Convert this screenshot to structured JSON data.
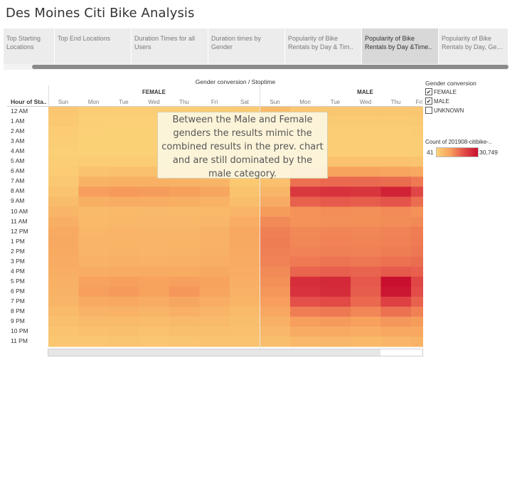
{
  "title": "Des Moines Citi Bike Analysis",
  "tabs": [
    {
      "line1": "Top Starting",
      "line2": "Locations",
      "active": false,
      "width": 72
    },
    {
      "line1": "Top End Locations",
      "line2": "",
      "active": false,
      "width": 108
    },
    {
      "line1": "Duration Times for all",
      "line2": "Users",
      "active": false,
      "width": 108
    },
    {
      "line1": "Duration times by",
      "line2": "Gender",
      "active": false,
      "width": 108
    },
    {
      "line1": "Popularity of Bike",
      "line2": "Rentals by Day & Tim..",
      "active": false,
      "width": 108
    },
    {
      "line1": "Popularity of Bike",
      "line2": "Rentals by Day &Time..",
      "active": true,
      "width": 108
    },
    {
      "line1": "Popularity of Bike",
      "line2": "Rentals by Day, Gend..",
      "active": false,
      "width": 98
    }
  ],
  "chart": {
    "column_title": "Gender conversion / Stoptime",
    "groups": [
      "FEMALE",
      "MALE"
    ],
    "days": [
      "Sun",
      "Mon",
      "Tue",
      "Wed",
      "Thu",
      "Fri",
      "Sat",
      "Sun",
      "Mon",
      "Tue",
      "Wed",
      "Thu",
      "Fri"
    ],
    "row_header": "Hour of Sta..",
    "hours": [
      "12 AM",
      "1 AM",
      "2 AM",
      "3 AM",
      "4 AM",
      "5 AM",
      "6 AM",
      "7 AM",
      "8 AM",
      "9 AM",
      "10 AM",
      "11 AM",
      "12 PM",
      "1 PM",
      "2 PM",
      "3 PM",
      "4 PM",
      "5 PM",
      "6 PM",
      "7 PM",
      "8 PM",
      "9 PM",
      "10 PM",
      "11 PM"
    ]
  },
  "annotation": "Between the Male and Female genders the results mimic the combined results in the prev. chart and are still dominated by the male category.",
  "legend": {
    "title": "Gender conversion",
    "items": [
      {
        "label": "FEMALE",
        "checked": true
      },
      {
        "label": "MALE",
        "checked": true
      },
      {
        "label": "UNKNOWN",
        "checked": false
      }
    ],
    "count_title": "Count of 201908-citibike-..",
    "min_label": "41",
    "max_label": "30,749",
    "min_value": 41,
    "max_value": 30749
  },
  "chart_data": {
    "type": "heatmap",
    "title": "Gender conversion / Stoptime",
    "x_groups": [
      "FEMALE",
      "MALE"
    ],
    "x": [
      "Sun",
      "Mon",
      "Tue",
      "Wed",
      "Thu",
      "Fri",
      "Sat"
    ],
    "y": [
      "12 AM",
      "1 AM",
      "2 AM",
      "3 AM",
      "4 AM",
      "5 AM",
      "6 AM",
      "7 AM",
      "8 AM",
      "9 AM",
      "10 AM",
      "11 AM",
      "12 PM",
      "1 PM",
      "2 PM",
      "3 PM",
      "4 PM",
      "5 PM",
      "6 PM",
      "7 PM",
      "8 PM",
      "9 PM",
      "10 PM",
      "11 PM"
    ],
    "value_range": [
      41,
      30749
    ],
    "colors": [
      "#fbd277",
      "#f7a05c",
      "#e34c48",
      "#c8102e"
    ],
    "female": [
      [
        2500,
        1000,
        800,
        900,
        900,
        1200,
        1700
      ],
      [
        1800,
        600,
        500,
        500,
        500,
        700,
        1300
      ],
      [
        1300,
        400,
        300,
        300,
        300,
        500,
        1000
      ],
      [
        900,
        300,
        250,
        250,
        250,
        300,
        700
      ],
      [
        700,
        400,
        350,
        350,
        350,
        400,
        600
      ],
      [
        800,
        1200,
        1300,
        1300,
        1200,
        1100,
        700
      ],
      [
        1200,
        3500,
        3700,
        3700,
        3600,
        3300,
        1100
      ],
      [
        2000,
        6500,
        7000,
        7000,
        6800,
        6000,
        1900
      ],
      [
        3200,
        10500,
        11000,
        10800,
        10200,
        9000,
        3000
      ],
      [
        4500,
        7500,
        7800,
        7600,
        7300,
        6700,
        4300
      ],
      [
        6000,
        5000,
        5200,
        5100,
        5000,
        5200,
        6000
      ],
      [
        7500,
        5200,
        5400,
        5300,
        5300,
        5800,
        7700
      ],
      [
        8300,
        5900,
        6100,
        6000,
        6000,
        6600,
        8600
      ],
      [
        8400,
        6000,
        6200,
        6100,
        6100,
        6700,
        8500
      ],
      [
        8300,
        6100,
        6300,
        6200,
        6300,
        6900,
        8300
      ],
      [
        8000,
        6700,
        7000,
        6800,
        6900,
        7500,
        8000
      ],
      [
        7500,
        7600,
        8000,
        7800,
        7900,
        8400,
        7600
      ],
      [
        7000,
        9600,
        10200,
        9900,
        10400,
        9700,
        7200
      ],
      [
        6600,
        10400,
        11000,
        9800,
        11500,
        9300,
        6800
      ],
      [
        6000,
        8200,
        8700,
        7800,
        9100,
        7600,
        6000
      ],
      [
        5000,
        6300,
        6700,
        6000,
        6900,
        6000,
        5000
      ],
      [
        4000,
        4700,
        5000,
        4600,
        5100,
        4700,
        4200
      ],
      [
        3200,
        3700,
        3900,
        3500,
        4000,
        4000,
        3700
      ],
      [
        2500,
        2500,
        2700,
        2500,
        2700,
        3100,
        3100
      ]
    ],
    "male": [
      [
        4500,
        2500,
        2200,
        2200,
        2300,
        2600,
        3000
      ],
      [
        3300,
        1600,
        1400,
        1400,
        1500,
        1700,
        2300
      ],
      [
        2500,
        1100,
        1000,
        1000,
        1000,
        1200,
        1800
      ],
      [
        1800,
        900,
        800,
        800,
        800,
        900,
        1300
      ],
      [
        1400,
        1100,
        1000,
        1000,
        1000,
        1100,
        1100
      ],
      [
        1600,
        3300,
        3400,
        3400,
        3300,
        3100,
        1300
      ],
      [
        2400,
        9200,
        9700,
        9600,
        9300,
        8600,
        2200
      ],
      [
        3800,
        16000,
        17000,
        16800,
        16500,
        15000,
        3600
      ],
      [
        5800,
        24000,
        25000,
        24500,
        27500,
        21500,
        5500
      ],
      [
        8000,
        18000,
        18800,
        18400,
        19500,
        16500,
        7800
      ],
      [
        10800,
        12000,
        12500,
        12300,
        12800,
        12000,
        10800
      ],
      [
        13000,
        12000,
        12400,
        12200,
        12600,
        13000,
        13200
      ],
      [
        14200,
        13100,
        13600,
        13400,
        13800,
        14500,
        14500
      ],
      [
        14500,
        13400,
        13900,
        13700,
        14100,
        14800,
        14400
      ],
      [
        14300,
        13800,
        14300,
        14100,
        14600,
        15300,
        14300
      ],
      [
        13800,
        15000,
        15600,
        15300,
        16000,
        16500,
        13800
      ],
      [
        13000,
        17500,
        18200,
        17600,
        18800,
        18200,
        13200
      ],
      [
        12200,
        25500,
        26500,
        19000,
        30749,
        21500,
        12500
      ],
      [
        11500,
        25000,
        26000,
        18500,
        29500,
        20500,
        11800
      ],
      [
        10500,
        20000,
        21000,
        17000,
        22500,
        17800,
        10500
      ],
      [
        8800,
        14500,
        15200,
        13500,
        16000,
        14000,
        8800
      ],
      [
        7000,
        10500,
        11000,
        10000,
        11500,
        10800,
        7500
      ],
      [
        5500,
        8000,
        8300,
        7700,
        8600,
        8700,
        6500
      ],
      [
        4200,
        5300,
        5500,
        5200,
        5700,
        6500,
        5500
      ]
    ]
  }
}
